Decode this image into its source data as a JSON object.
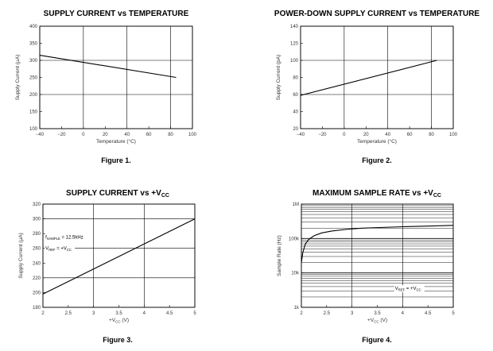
{
  "chart_data": [
    {
      "type": "line",
      "title_main": "SUPPLY CURRENT vs TEMPERATURE",
      "figure": "Figure 1.",
      "xlabel": "Temperature (°C)",
      "ylabel": "Supply Current (µA)",
      "xlim": [
        -40,
        100
      ],
      "ylim": [
        100,
        400
      ],
      "xticks": [
        -40,
        -20,
        0,
        20,
        40,
        60,
        80,
        100
      ],
      "yticks": [
        100,
        150,
        200,
        250,
        300,
        350,
        400
      ],
      "xtick_labels": [
        "−40",
        "−20",
        "0",
        "20",
        "40",
        "60",
        "80",
        "100"
      ],
      "ytick_labels": [
        "100",
        "150",
        "200",
        "250",
        "300",
        "350",
        "400"
      ],
      "vgrid": [
        -40,
        0,
        40,
        80,
        100
      ],
      "hgrid": [
        100,
        200,
        300,
        400
      ],
      "x": [
        -40,
        85
      ],
      "y": [
        315,
        250
      ],
      "grid": true
    },
    {
      "type": "line",
      "title_main": "POWER-DOWN SUPPLY CURRENT vs TEMPERATURE",
      "figure": "Figure 2.",
      "xlabel": "Temperature (°C)",
      "ylabel": "Supply Current (pA)",
      "xlim": [
        -40,
        100
      ],
      "ylim": [
        20,
        140
      ],
      "xticks": [
        -40,
        -20,
        0,
        20,
        40,
        60,
        80,
        100
      ],
      "yticks": [
        20,
        40,
        60,
        80,
        100,
        120,
        140
      ],
      "xtick_labels": [
        "−40",
        "−20",
        "0",
        "20",
        "40",
        "60",
        "80",
        "100"
      ],
      "ytick_labels": [
        "20",
        "40",
        "60",
        "80",
        "100",
        "120",
        "140"
      ],
      "vgrid": [
        -40,
        0,
        40,
        80,
        100
      ],
      "hgrid": [
        20,
        60,
        100,
        140
      ],
      "x": [
        -40,
        85
      ],
      "y": [
        59,
        100
      ],
      "grid": true
    },
    {
      "type": "line",
      "title_main": "SUPPLY CURRENT vs +V",
      "title_sub": "CC",
      "figure": "Figure 3.",
      "xlabel_main": "+V",
      "xlabel_sub": "CC",
      "xlabel_unit": " (V)",
      "ylabel": "Supply Current (µA)",
      "xlim": [
        2,
        5
      ],
      "ylim": [
        180,
        320
      ],
      "xticks": [
        2,
        2.5,
        3,
        3.5,
        4,
        4.5,
        5
      ],
      "yticks": [
        180,
        200,
        220,
        240,
        260,
        280,
        300,
        320
      ],
      "xtick_labels": [
        "2",
        "2.5",
        "3",
        "3.5",
        "4",
        "4.5",
        "5"
      ],
      "ytick_labels": [
        "180",
        "200",
        "220",
        "240",
        "260",
        "280",
        "300",
        "320"
      ],
      "vgrid": [
        2,
        3,
        4,
        5
      ],
      "hgrid": [
        180,
        220,
        260,
        300,
        320
      ],
      "x": [
        2,
        5
      ],
      "y": [
        198,
        300
      ],
      "grid": true,
      "annotations": [
        {
          "main": "f",
          "sub": "SAMPLE",
          "rest": " = 12.5kHz",
          "x": 2.05,
          "y": 273
        },
        {
          "main": "V",
          "sub": "REF",
          "rest": " = +V",
          "sub2": "CC",
          "x": 2.05,
          "y": 258
        }
      ]
    },
    {
      "type": "line",
      "title_main": "MAXIMUM SAMPLE RATE vs +V",
      "title_sub": "CC",
      "figure": "Figure 4.",
      "xlabel_main": "+V",
      "xlabel_sub": "CC",
      "xlabel_unit": " (V)",
      "ylabel": "Sample Rate (Hz)",
      "yscale": "log",
      "xlim": [
        2,
        5
      ],
      "ylim": [
        1000,
        1000000
      ],
      "xticks": [
        2,
        2.5,
        3,
        3.5,
        4,
        4.5,
        5
      ],
      "yticks": [
        1000,
        10000,
        100000,
        1000000
      ],
      "xtick_labels": [
        "2",
        "2.5",
        "3",
        "3.5",
        "4",
        "4.5",
        "5"
      ],
      "ytick_labels": [
        "1k",
        "10k",
        "100k",
        "1M"
      ],
      "vgrid": [
        2,
        3,
        4,
        5
      ],
      "x": [
        2.0,
        2.03,
        2.08,
        2.15,
        2.25,
        2.4,
        2.6,
        2.9,
        3.2,
        3.6,
        4.0,
        4.5,
        5.0
      ],
      "y": [
        20000,
        40000,
        70000,
        95000,
        120000,
        145000,
        165000,
        185000,
        200000,
        210000,
        220000,
        230000,
        240000
      ],
      "grid": true,
      "annotations": [
        {
          "main": "V",
          "sub": "REF",
          "rest": " = +V",
          "sub2": "CC",
          "x": 3.85,
          "y": 3200
        }
      ]
    }
  ]
}
